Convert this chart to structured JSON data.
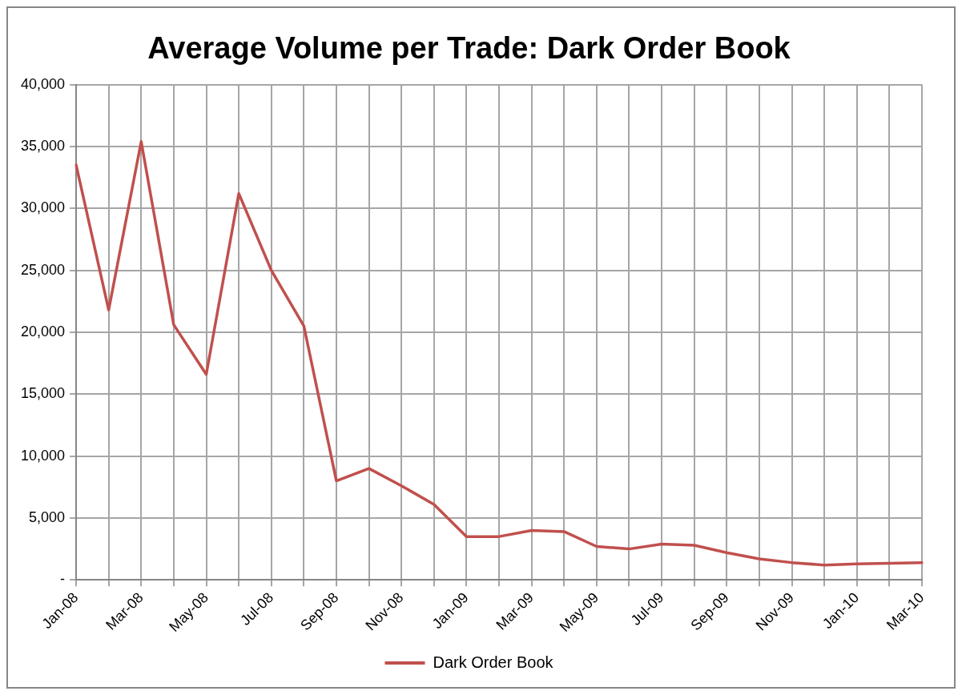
{
  "chart_data": {
    "type": "line",
    "title": "Average Volume per Trade: Dark Order Book",
    "categories": [
      "Jan-08",
      null,
      "Mar-08",
      null,
      "May-08",
      null,
      "Jul-08",
      null,
      "Sep-08",
      null,
      "Nov-08",
      null,
      "Jan-09",
      null,
      "Mar-09",
      null,
      "May-09",
      null,
      "Jul-09",
      null,
      "Sep-09",
      null,
      "Nov-09",
      null,
      "Jan-10",
      null,
      "Mar-10"
    ],
    "series": [
      {
        "name": "Dark Order Book",
        "color": "#c0504d",
        "values": [
          33500,
          21800,
          35400,
          20600,
          16600,
          31200,
          25000,
          20500,
          8000,
          9000,
          7600,
          6100,
          3500,
          3500,
          4000,
          3900,
          2700,
          2500,
          2900,
          2800,
          2200,
          1700,
          1400,
          1200,
          1300,
          1350,
          1400
        ]
      }
    ],
    "ylim": [
      0,
      40000
    ],
    "yticks": [
      {
        "value": 0,
        "label": "-"
      },
      {
        "value": 5000,
        "label": "5,000"
      },
      {
        "value": 10000,
        "label": "10,000"
      },
      {
        "value": 15000,
        "label": "15,000"
      },
      {
        "value": 20000,
        "label": "20,000"
      },
      {
        "value": 25000,
        "label": "25,000"
      },
      {
        "value": 30000,
        "label": "30,000"
      },
      {
        "value": 35000,
        "label": "35,000"
      },
      {
        "value": 40000,
        "label": "40,000"
      }
    ],
    "grid": true,
    "legend": "bottom",
    "marker": "none",
    "line_style": "solid"
  }
}
